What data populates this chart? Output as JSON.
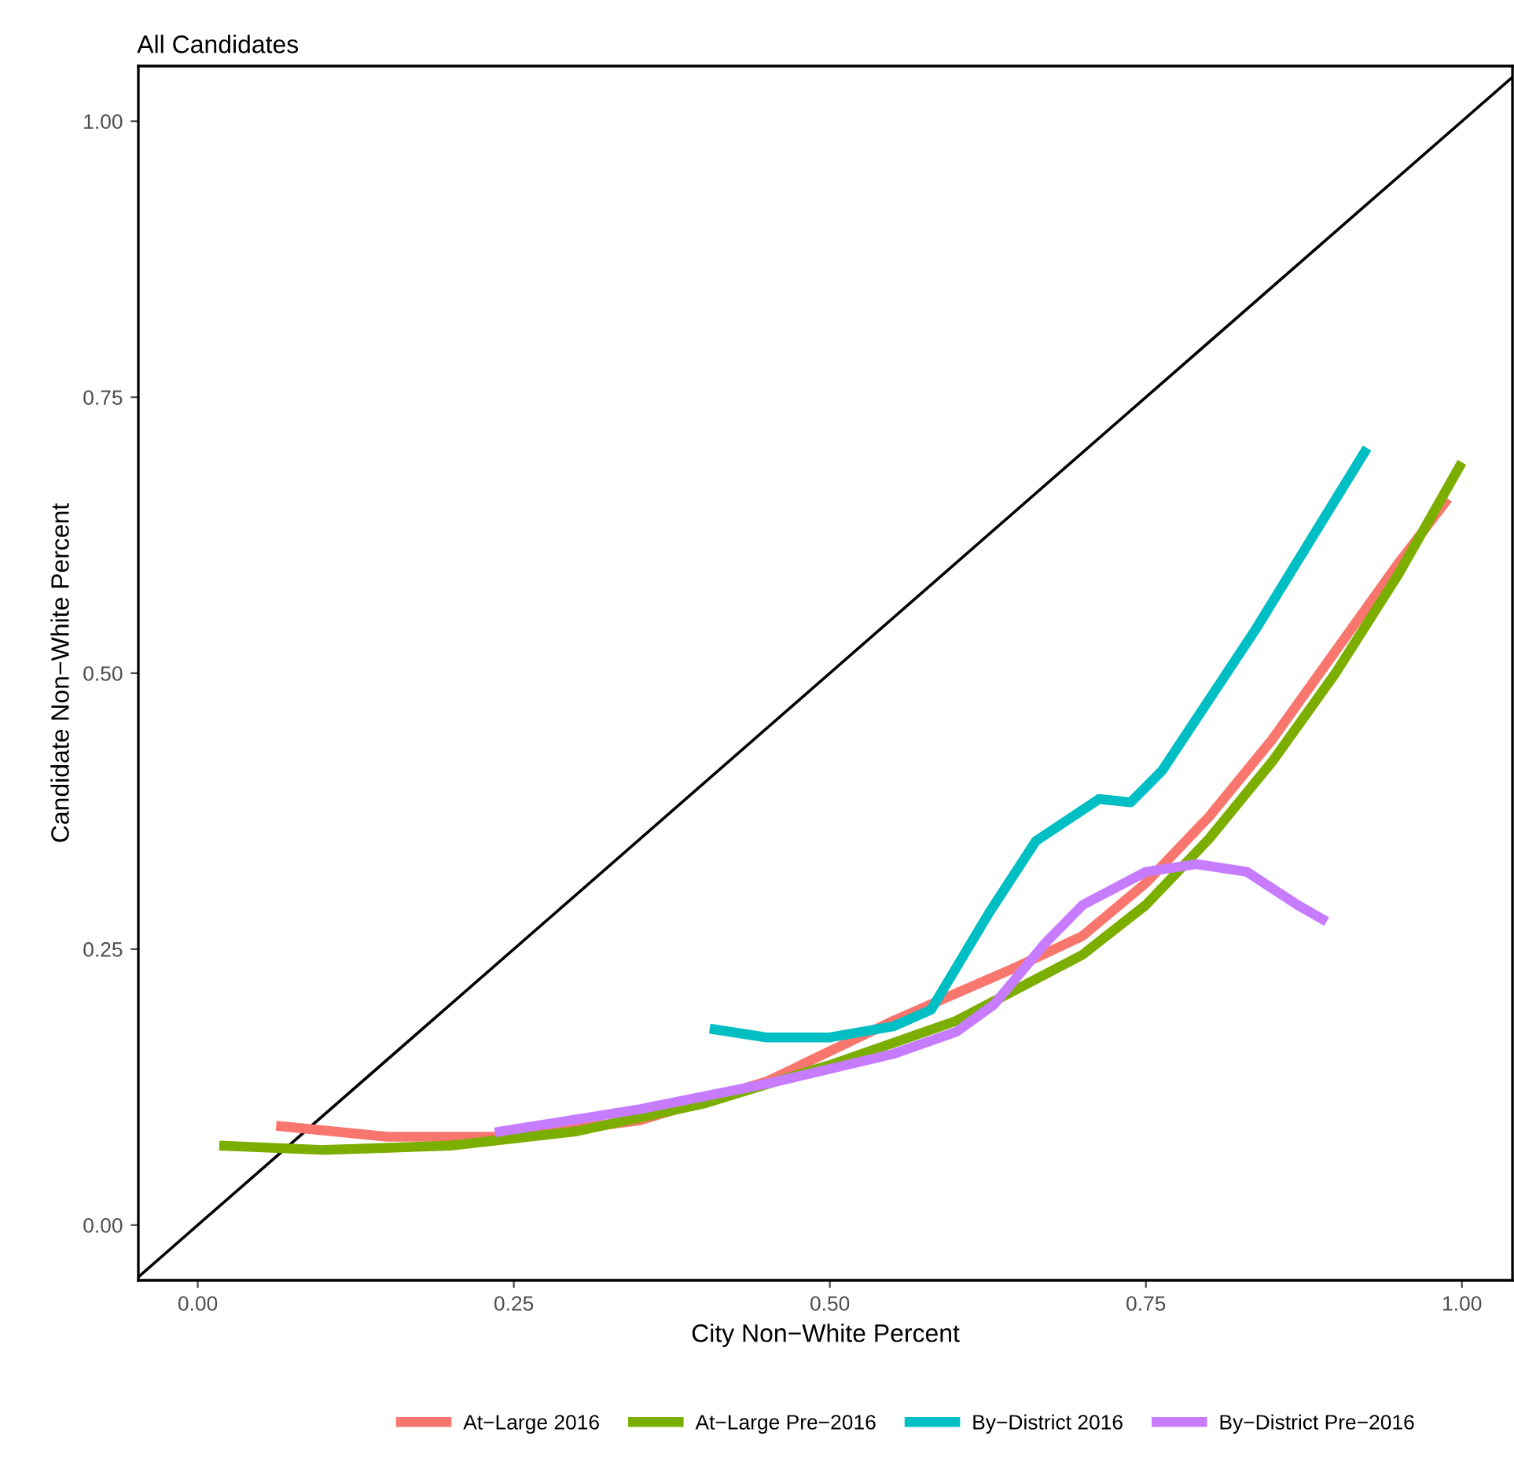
{
  "chart_data": {
    "type": "line",
    "title": "All Candidates",
    "xlabel": "City Non−White Percent",
    "ylabel": "Candidate Non−White Percent",
    "xlim": [
      -0.047,
      1.04
    ],
    "ylim": [
      -0.05,
      1.05
    ],
    "xticks": [
      {
        "value": 0,
        "label": "0.00"
      },
      0.25,
      {
        "value": 0.5,
        "label": "0.50"
      },
      0.75,
      {
        "value": 1,
        "label": "1.00"
      }
    ],
    "yticks": [
      {
        "value": 0,
        "label": "0.00"
      },
      0.25,
      {
        "value": 0.5,
        "label": "0.50"
      },
      0.75,
      {
        "value": 1,
        "label": "1.00"
      }
    ],
    "grid": false,
    "legend": "bottom",
    "series": [
      {
        "name": null,
        "color": "#000000",
        "x": [
          -0.047,
          1.04
        ],
        "values": [
          -0.047,
          1.04
        ]
      },
      {
        "name": "At−Large 2016",
        "color": "#f8766d",
        "x": [
          0.062,
          0.15,
          0.25,
          0.35,
          0.45,
          0.55,
          0.65,
          0.7,
          0.75,
          0.8,
          0.85,
          0.9,
          0.95,
          0.989
        ],
        "values": [
          0.09,
          0.08,
          0.08,
          0.095,
          0.13,
          0.185,
          0.235,
          0.262,
          0.31,
          0.37,
          0.44,
          0.52,
          0.6,
          0.658
        ]
      },
      {
        "name": "At−Large Pre−2016",
        "color": "#7cae00",
        "x": [
          0.017,
          0.1,
          0.2,
          0.3,
          0.4,
          0.5,
          0.6,
          0.7,
          0.75,
          0.8,
          0.85,
          0.9,
          0.95,
          1.0
        ],
        "values": [
          0.072,
          0.068,
          0.072,
          0.085,
          0.11,
          0.145,
          0.185,
          0.245,
          0.29,
          0.35,
          0.42,
          0.5,
          0.59,
          0.691
        ]
      },
      {
        "name": "By−District 2016",
        "color": "#00bfc4",
        "x": [
          0.405,
          0.45,
          0.5,
          0.55,
          0.58,
          0.626,
          0.663,
          0.713,
          0.738,
          0.763,
          0.837,
          0.925
        ],
        "values": [
          0.178,
          0.17,
          0.17,
          0.18,
          0.195,
          0.283,
          0.348,
          0.386,
          0.383,
          0.412,
          0.54,
          0.704
        ]
      },
      {
        "name": "By−District Pre−2016",
        "color": "#c77cff",
        "x": [
          0.235,
          0.35,
          0.45,
          0.55,
          0.6,
          0.63,
          0.67,
          0.7,
          0.75,
          0.79,
          0.83,
          0.87,
          0.893
        ],
        "values": [
          0.084,
          0.105,
          0.128,
          0.155,
          0.175,
          0.2,
          0.255,
          0.29,
          0.32,
          0.327,
          0.32,
          0.29,
          0.275
        ]
      }
    ]
  }
}
